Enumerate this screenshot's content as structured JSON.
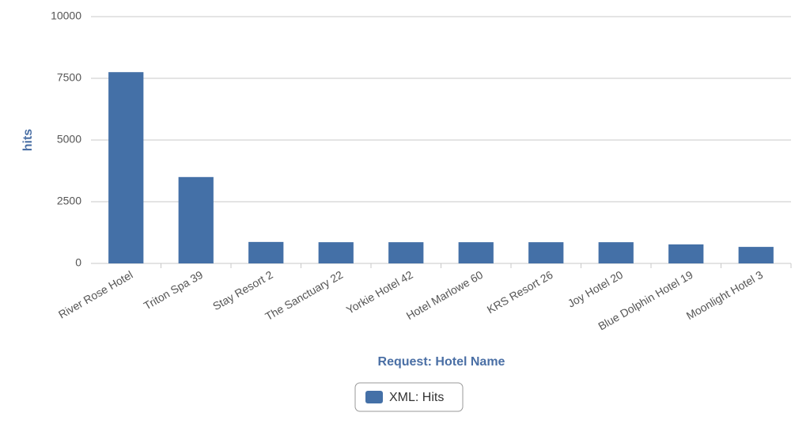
{
  "chart_data": {
    "type": "bar",
    "x_label": "Request: Hotel Name",
    "y_label": "hits",
    "categories": [
      "River Rose Hotel",
      "Triton Spa 39",
      "Stay Resort 2",
      "The Sanctuary 22",
      "Yorkie Hotel 42",
      "Hotel Marlowe 60",
      "KRS Resort 26",
      "Joy Hotel 20",
      "Blue Dolphin Hotel 19",
      "Moonlight Hotel 3"
    ],
    "series": [
      {
        "name": "XML: Hits",
        "color": "#4470a7",
        "values": [
          7750,
          3500,
          870,
          860,
          860,
          860,
          860,
          860,
          770,
          670
        ]
      }
    ],
    "ylim": [
      0,
      10000
    ],
    "yticks": [
      0,
      2500,
      5000,
      7500,
      10000
    ],
    "grid": true,
    "legend": "bottom"
  }
}
